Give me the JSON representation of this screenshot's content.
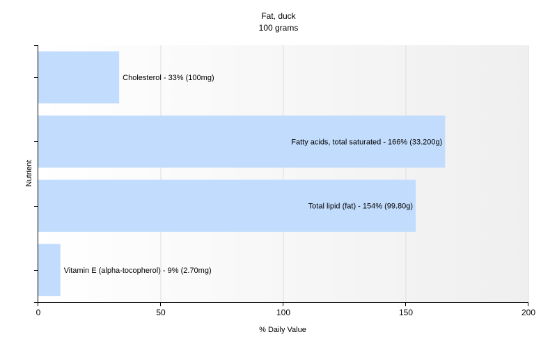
{
  "chart_data": {
    "type": "bar",
    "orientation": "horizontal",
    "title": "Fat, duck",
    "subtitle": "100 grams",
    "xlabel": "% Daily Value",
    "ylabel": "Nutrient",
    "xlim": [
      0,
      200
    ],
    "xticks": [
      0,
      50,
      100,
      150,
      200
    ],
    "grid": true,
    "legend": "none",
    "bar_color": "#c2dcfd",
    "categories": [
      "Cholesterol",
      "Fatty acids, total saturated",
      "Total lipid (fat)",
      "Vitamin E (alpha-tocopherol)"
    ],
    "values": [
      33,
      166,
      154,
      9
    ],
    "labels": [
      "Cholesterol - 33% (100mg)",
      "Fatty acids, total saturated - 166% (33.200g)",
      "Total lipid (fat) - 154% (99.80g)",
      "Vitamin E (alpha-tocopherol) - 9% (2.70mg)"
    ]
  }
}
